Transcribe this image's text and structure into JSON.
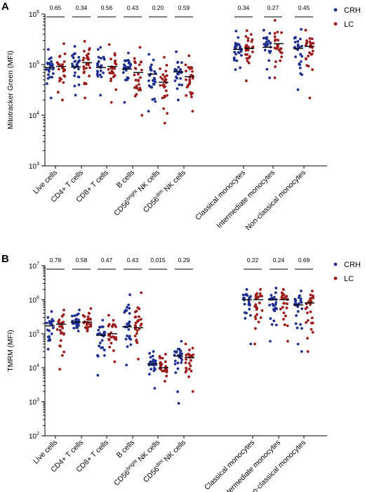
{
  "legend": {
    "placement": "top-right"
  },
  "colors": {
    "CRH": "#1f2f8f",
    "LC": "#9c1a1a"
  },
  "chart_data": [
    {
      "panel": "A",
      "type": "scatter",
      "ylabel": "Mitotracker Green (MFI)",
      "yscale": "log",
      "ylim": [
        1000,
        1000000
      ],
      "yticks": [
        {
          "exp": 3,
          "label": "10",
          "sup": "3"
        },
        {
          "exp": 4,
          "label": "10",
          "sup": "4"
        },
        {
          "exp": 5,
          "label": "10",
          "sup": "5"
        },
        {
          "exp": 6,
          "label": "10",
          "sup": "6"
        }
      ],
      "categories": [
        {
          "pre": "Live cells",
          "sup": "",
          "post": ""
        },
        {
          "pre": "CD4+ T cells",
          "sup": "",
          "post": ""
        },
        {
          "pre": "CD8+ T cells",
          "sup": "",
          "post": ""
        },
        {
          "pre": "B cells",
          "sup": "",
          "post": ""
        },
        {
          "pre": "CD56",
          "sup": "bright",
          "post": " NK cells"
        },
        {
          "pre": "CD56",
          "sup": "dim",
          "post": " NK cells"
        },
        {
          "pre": "Classical monocytes",
          "sup": "",
          "post": ""
        },
        {
          "pre": "Intermediate monocytes",
          "sup": "",
          "post": ""
        },
        {
          "pre": "Non-classical monocytes",
          "sup": "",
          "post": ""
        }
      ],
      "pvalues": [
        "0.65",
        "0.34",
        "0.56",
        "0.43",
        "0.20",
        "0.59",
        "0.34",
        "0.27",
        "0.45"
      ],
      "series": [
        {
          "name": "CRH",
          "medians": [
            88000,
            90000,
            88000,
            82000,
            65000,
            72000,
            200000,
            220000,
            210000
          ],
          "min": [
            22000,
            25000,
            25000,
            18000,
            12000,
            20000,
            80000,
            55000,
            32000
          ],
          "max": [
            200000,
            230000,
            220000,
            170000,
            160000,
            180000,
            460000,
            480000,
            500000
          ]
        },
        {
          "name": "LC",
          "medians": [
            92000,
            110000,
            92000,
            70000,
            45000,
            58000,
            210000,
            260000,
            230000
          ],
          "min": [
            20000,
            22000,
            18000,
            10000,
            7000,
            12000,
            48000,
            55000,
            22000
          ],
          "max": [
            260000,
            290000,
            250000,
            220000,
            140000,
            150000,
            470000,
            750000,
            480000
          ]
        }
      ]
    },
    {
      "panel": "B",
      "type": "scatter",
      "ylabel": "TMRM (MFI)",
      "yscale": "log",
      "ylim": [
        100,
        10000000
      ],
      "yticks": [
        {
          "exp": 2,
          "label": "10",
          "sup": "2"
        },
        {
          "exp": 3,
          "label": "10",
          "sup": "3"
        },
        {
          "exp": 4,
          "label": "10",
          "sup": "4"
        },
        {
          "exp": 5,
          "label": "10",
          "sup": "5"
        },
        {
          "exp": 6,
          "label": "10",
          "sup": "6"
        },
        {
          "exp": 7,
          "label": "10",
          "sup": "7"
        }
      ],
      "categories": [
        {
          "pre": "Live cells",
          "sup": "",
          "post": ""
        },
        {
          "pre": "CD4+ T cells",
          "sup": "",
          "post": ""
        },
        {
          "pre": "CD8+ T cells",
          "sup": "",
          "post": ""
        },
        {
          "pre": "B cells",
          "sup": "",
          "post": ""
        },
        {
          "pre": "CD56",
          "sup": "bright",
          "post": " NK cells"
        },
        {
          "pre": "CD56",
          "sup": "dim",
          "post": " NK cells"
        },
        {
          "pre": "Classical monocytes",
          "sup": "",
          "post": ""
        },
        {
          "pre": "Intermediate monocytes",
          "sup": "",
          "post": ""
        },
        {
          "pre": "Non-classical monocytes",
          "sup": "",
          "post": ""
        }
      ],
      "pvalues": [
        "0.78",
        "0.58",
        "0.47",
        "0.43",
        "0.015",
        "0.29",
        "0.22",
        "0.24",
        "0.69"
      ],
      "series": [
        {
          "name": "CRH",
          "medians": [
            170000,
            220000,
            90000,
            160000,
            13000,
            22000,
            1000000,
            1000000,
            700000
          ],
          "min": [
            35000,
            120000,
            6000,
            12000,
            2500,
            900,
            50000,
            60000,
            30000
          ],
          "max": [
            450000,
            500000,
            250000,
            1400000,
            30000,
            60000,
            2000000,
            2200000,
            1800000
          ]
        },
        {
          "name": "LC",
          "medians": [
            190000,
            220000,
            100000,
            150000,
            10000,
            20000,
            1000000,
            1000000,
            800000
          ],
          "min": [
            9000,
            120000,
            15000,
            18000,
            4000,
            2000,
            50000,
            60000,
            30000
          ],
          "max": [
            500000,
            550000,
            350000,
            1600000,
            25000,
            50000,
            2000000,
            2000000,
            1800000
          ]
        }
      ]
    }
  ]
}
